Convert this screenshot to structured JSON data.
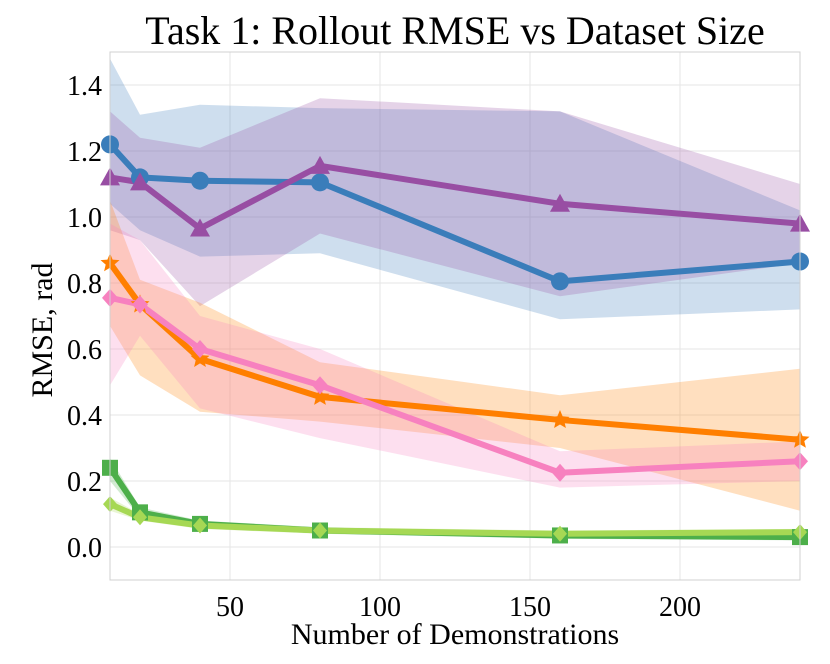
{
  "chart_data": {
    "type": "line",
    "title": "Task 1: Rollout RMSE vs Dataset Size",
    "xlabel": "Number of Demonstrations",
    "ylabel": "RMSE, rad",
    "xlim": [
      10,
      240
    ],
    "ylim": [
      -0.1,
      1.5
    ],
    "xticks": [
      50,
      100,
      150,
      200
    ],
    "yticks": [
      0.0,
      0.2,
      0.4,
      0.6,
      0.8,
      1.0,
      1.2,
      1.4
    ],
    "xtick_labels": [
      "50",
      "100",
      "150",
      "200"
    ],
    "ytick_labels": [
      "0.0",
      "0.2",
      "0.4",
      "0.6",
      "0.8",
      "1.0",
      "1.2",
      "1.4"
    ],
    "grid": true,
    "series": [
      {
        "name": "blue",
        "color": "#3a7dba",
        "marker": "circle",
        "x": [
          10,
          20,
          40,
          80,
          160,
          240
        ],
        "values": [
          1.22,
          1.12,
          1.11,
          1.105,
          0.805,
          0.865
        ],
        "lower": [
          1.04,
          0.96,
          0.88,
          0.89,
          0.69,
          0.72
        ],
        "upper": [
          1.48,
          1.31,
          1.34,
          1.33,
          1.32,
          1.02
        ]
      },
      {
        "name": "purple",
        "color": "#984ea3",
        "marker": "triangle",
        "x": [
          10,
          20,
          40,
          80,
          160,
          240
        ],
        "values": [
          1.12,
          1.105,
          0.965,
          1.155,
          1.04,
          0.98
        ],
        "lower": [
          0.96,
          0.93,
          0.73,
          0.95,
          0.76,
          0.86
        ],
        "upper": [
          1.32,
          1.24,
          1.21,
          1.36,
          1.32,
          1.1
        ]
      },
      {
        "name": "orange",
        "color": "#ff7f00",
        "marker": "star",
        "x": [
          10,
          20,
          40,
          80,
          160,
          240
        ],
        "values": [
          0.86,
          0.735,
          0.57,
          0.455,
          0.385,
          0.325
        ],
        "lower": [
          0.67,
          0.52,
          0.41,
          0.38,
          0.3,
          0.11
        ],
        "upper": [
          1.05,
          0.81,
          0.74,
          0.56,
          0.46,
          0.54
        ]
      },
      {
        "name": "pink",
        "color": "#f781bf",
        "marker": "diamond",
        "x": [
          10,
          20,
          40,
          80,
          160,
          240
        ],
        "values": [
          0.755,
          0.735,
          0.6,
          0.49,
          0.225,
          0.26
        ],
        "lower": [
          0.49,
          0.64,
          0.42,
          0.33,
          0.18,
          0.2
        ],
        "upper": [
          0.98,
          0.93,
          0.7,
          0.6,
          0.29,
          0.32
        ]
      },
      {
        "name": "green",
        "color": "#4daf4a",
        "marker": "square",
        "x": [
          10,
          20,
          40,
          80,
          160,
          240
        ],
        "values": [
          0.24,
          0.105,
          0.07,
          0.05,
          0.035,
          0.03
        ],
        "lower": [
          0.2,
          0.09,
          0.06,
          0.04,
          0.025,
          0.02
        ],
        "upper": [
          0.27,
          0.12,
          0.08,
          0.06,
          0.045,
          0.04
        ]
      },
      {
        "name": "light-green",
        "color": "#a6d854",
        "marker": "diamond-small",
        "x": [
          10,
          20,
          40,
          80,
          160,
          240
        ],
        "values": [
          0.13,
          0.09,
          0.065,
          0.05,
          0.04,
          0.045
        ],
        "lower": [
          0.11,
          0.08,
          0.055,
          0.04,
          0.03,
          0.035
        ],
        "upper": [
          0.15,
          0.1,
          0.075,
          0.06,
          0.05,
          0.055
        ]
      }
    ]
  }
}
